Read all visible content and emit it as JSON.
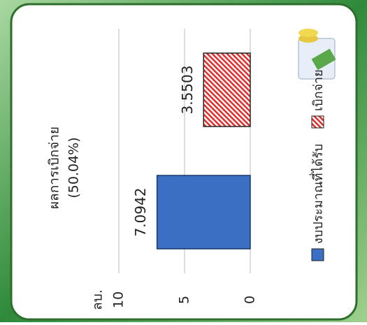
{
  "chart_data": {
    "type": "bar",
    "title": "ผลการเบิกจ่าย",
    "subtitle": "(50.04%)",
    "y_label": "ลบ.",
    "categories": [
      null
    ],
    "series": [
      {
        "name": "งบประมาณที่ได้รับ",
        "color": "#3a6fc4",
        "values": [
          7.0942
        ]
      },
      {
        "name": "เบิกจ่าย",
        "color": "#e03030",
        "pattern": "hatch",
        "values": [
          3.5503
        ]
      }
    ],
    "ylim": [
      0,
      10
    ],
    "yticks": [
      0,
      5,
      10
    ],
    "grid": true,
    "legend": "bottom"
  }
}
